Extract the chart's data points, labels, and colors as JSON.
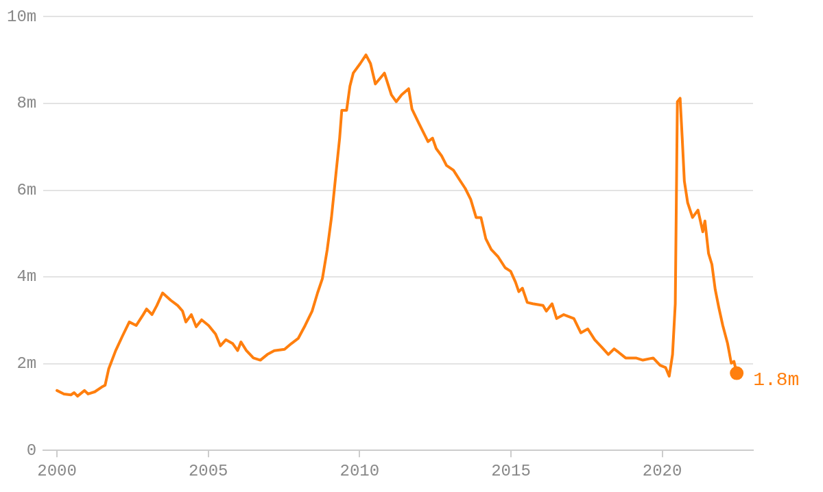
{
  "chart_data": {
    "type": "line",
    "x": [
      2000.0,
      2000.23,
      2000.46,
      2000.57,
      2000.68,
      2000.91,
      2001.03,
      2001.25,
      2001.48,
      2001.59,
      2001.71,
      2001.94,
      2002.16,
      2002.39,
      2002.62,
      2002.85,
      2002.96,
      2003.14,
      2003.3,
      2003.49,
      2003.76,
      2003.99,
      2004.15,
      2004.26,
      2004.44,
      2004.6,
      2004.78,
      2005.01,
      2005.24,
      2005.4,
      2005.58,
      2005.81,
      2005.97,
      2006.08,
      2006.26,
      2006.49,
      2006.72,
      2006.95,
      2007.18,
      2007.52,
      2007.74,
      2007.97,
      2008.2,
      2008.43,
      2008.61,
      2008.77,
      2008.93,
      2009.07,
      2009.23,
      2009.34,
      2009.41,
      2009.57,
      2009.68,
      2009.79,
      2010.02,
      2010.21,
      2010.36,
      2010.52,
      2010.82,
      2011.05,
      2011.21,
      2011.39,
      2011.62,
      2011.73,
      2011.96,
      2012.26,
      2012.41,
      2012.53,
      2012.71,
      2012.87,
      2013.1,
      2013.33,
      2013.49,
      2013.67,
      2013.85,
      2014.01,
      2014.17,
      2014.35,
      2014.58,
      2014.81,
      2014.99,
      2015.15,
      2015.26,
      2015.38,
      2015.54,
      2015.72,
      2016.06,
      2016.17,
      2016.36,
      2016.51,
      2016.74,
      2017.08,
      2017.31,
      2017.54,
      2017.77,
      2018.0,
      2018.22,
      2018.41,
      2018.56,
      2018.79,
      2019.13,
      2019.36,
      2019.7,
      2019.93,
      2020.11,
      2020.23,
      2020.34,
      2020.43,
      2020.5,
      2020.59,
      2020.66,
      2020.73,
      2020.84,
      2021.0,
      2021.18,
      2021.34,
      2021.41,
      2021.53,
      2021.64,
      2021.75,
      2021.87,
      2022.0,
      2022.16,
      2022.28,
      2022.37,
      2022.46
    ],
    "series": [
      {
        "color": "#ff7f0e",
        "values": [
          1.38,
          1.3,
          1.28,
          1.33,
          1.25,
          1.38,
          1.3,
          1.35,
          1.46,
          1.5,
          1.88,
          2.3,
          2.63,
          2.96,
          2.88,
          3.13,
          3.26,
          3.13,
          3.34,
          3.63,
          3.46,
          3.34,
          3.21,
          2.96,
          3.13,
          2.85,
          3.01,
          2.88,
          2.68,
          2.41,
          2.55,
          2.46,
          2.3,
          2.5,
          2.3,
          2.13,
          2.08,
          2.21,
          2.3,
          2.33,
          2.46,
          2.58,
          2.88,
          3.21,
          3.63,
          3.96,
          4.63,
          5.37,
          6.46,
          7.2,
          7.84,
          7.84,
          8.4,
          8.7,
          8.92,
          9.12,
          8.92,
          8.45,
          8.7,
          8.2,
          8.04,
          8.2,
          8.34,
          7.87,
          7.54,
          7.12,
          7.2,
          6.96,
          6.79,
          6.57,
          6.46,
          6.21,
          6.04,
          5.79,
          5.37,
          5.37,
          4.88,
          4.63,
          4.46,
          4.21,
          4.13,
          3.88,
          3.66,
          3.74,
          3.41,
          3.38,
          3.34,
          3.21,
          3.38,
          3.04,
          3.13,
          3.04,
          2.71,
          2.8,
          2.55,
          2.38,
          2.21,
          2.34,
          2.26,
          2.13,
          2.13,
          2.08,
          2.13,
          1.96,
          1.91,
          1.71,
          2.21,
          3.38,
          8.04,
          8.12,
          7.2,
          6.21,
          5.71,
          5.37,
          5.54,
          5.04,
          5.29,
          4.54,
          4.29,
          3.71,
          3.29,
          2.88,
          2.46,
          2.01,
          2.05,
          1.78
        ],
        "value_labels": [
          null,
          null,
          null,
          null,
          null,
          null,
          null,
          null,
          null,
          null,
          null,
          null,
          null,
          null,
          null,
          null,
          null,
          null,
          null,
          null,
          null,
          null,
          null,
          null,
          null,
          null,
          null,
          null,
          null,
          null,
          null,
          null,
          null,
          null,
          null,
          null,
          null,
          null,
          null,
          null,
          null,
          null,
          null,
          null,
          null,
          null,
          null,
          null,
          null,
          null,
          null,
          null,
          null,
          null,
          null,
          null,
          null,
          null,
          null,
          null,
          null,
          null,
          null,
          null,
          null,
          null,
          null,
          null,
          null,
          null,
          null,
          null,
          null,
          null,
          null,
          null,
          null,
          null,
          null,
          null,
          null,
          null,
          null,
          null,
          null,
          null,
          null,
          null,
          null,
          null,
          null,
          null,
          null,
          null,
          null,
          null,
          null,
          null,
          null,
          null,
          null,
          null,
          null,
          null,
          null,
          null,
          null,
          null,
          null,
          null,
          null,
          null,
          null,
          null,
          null,
          null,
          null,
          null,
          null,
          null,
          null,
          null,
          null,
          null,
          null,
          "1.8m"
        ]
      }
    ],
    "xlim": [
      1999.55,
      2023
    ],
    "xticks": [
      2000,
      2005,
      2010,
      2015,
      2020
    ],
    "ylim": [
      0,
      10
    ],
    "yticks": [
      0,
      {
        "value": 2,
        "label": "2m"
      },
      {
        "value": 4,
        "label": "4m"
      },
      {
        "value": 6,
        "label": "6m"
      },
      {
        "value": 8,
        "label": "8m"
      },
      {
        "value": 10,
        "label": "10m"
      }
    ],
    "grid": "y",
    "legend": false,
    "marker": "none",
    "line_style": "solid"
  }
}
